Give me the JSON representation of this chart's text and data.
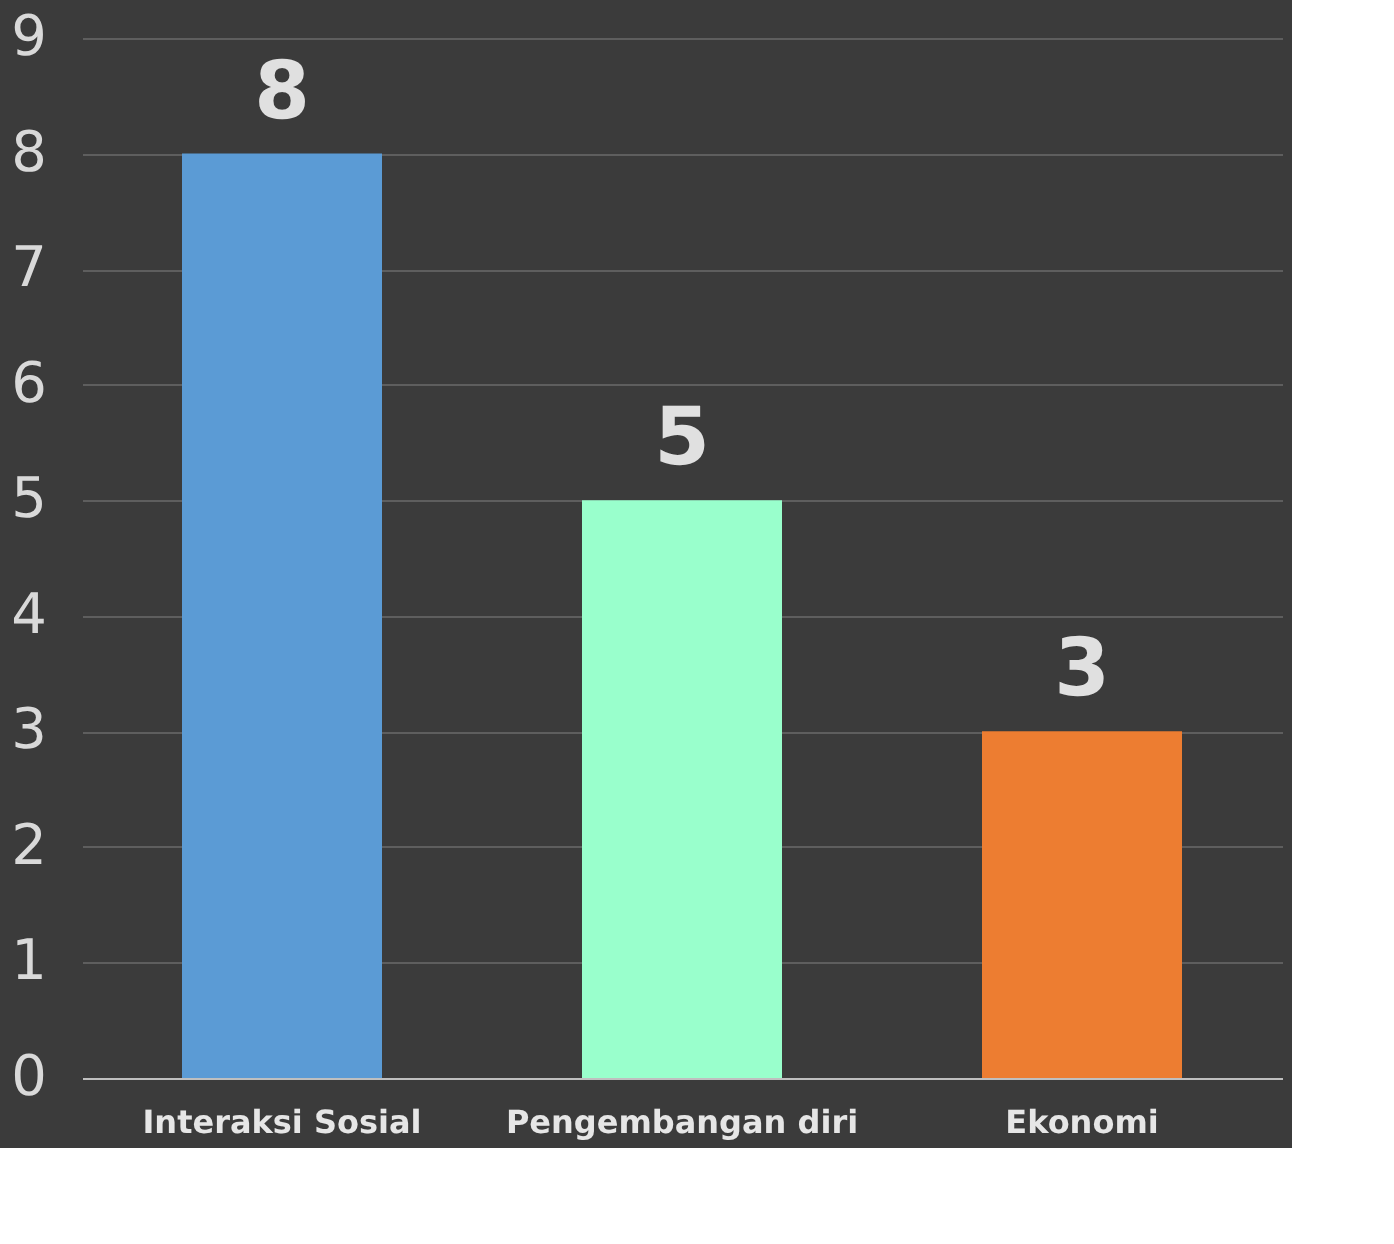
{
  "chart_data": {
    "type": "bar",
    "categories": [
      "Interaksi Sosial",
      "Pengembangan diri",
      "Ekonomi"
    ],
    "values": [
      8,
      5,
      3
    ],
    "colors": [
      "#5b9bd5",
      "#99ffcc",
      "#ed7d31"
    ],
    "ylim": [
      0,
      9
    ],
    "yticks": [
      0,
      1,
      2,
      3,
      4,
      5,
      6,
      7,
      8,
      9
    ],
    "grid": "y",
    "data_labels": true,
    "legend": false
  }
}
